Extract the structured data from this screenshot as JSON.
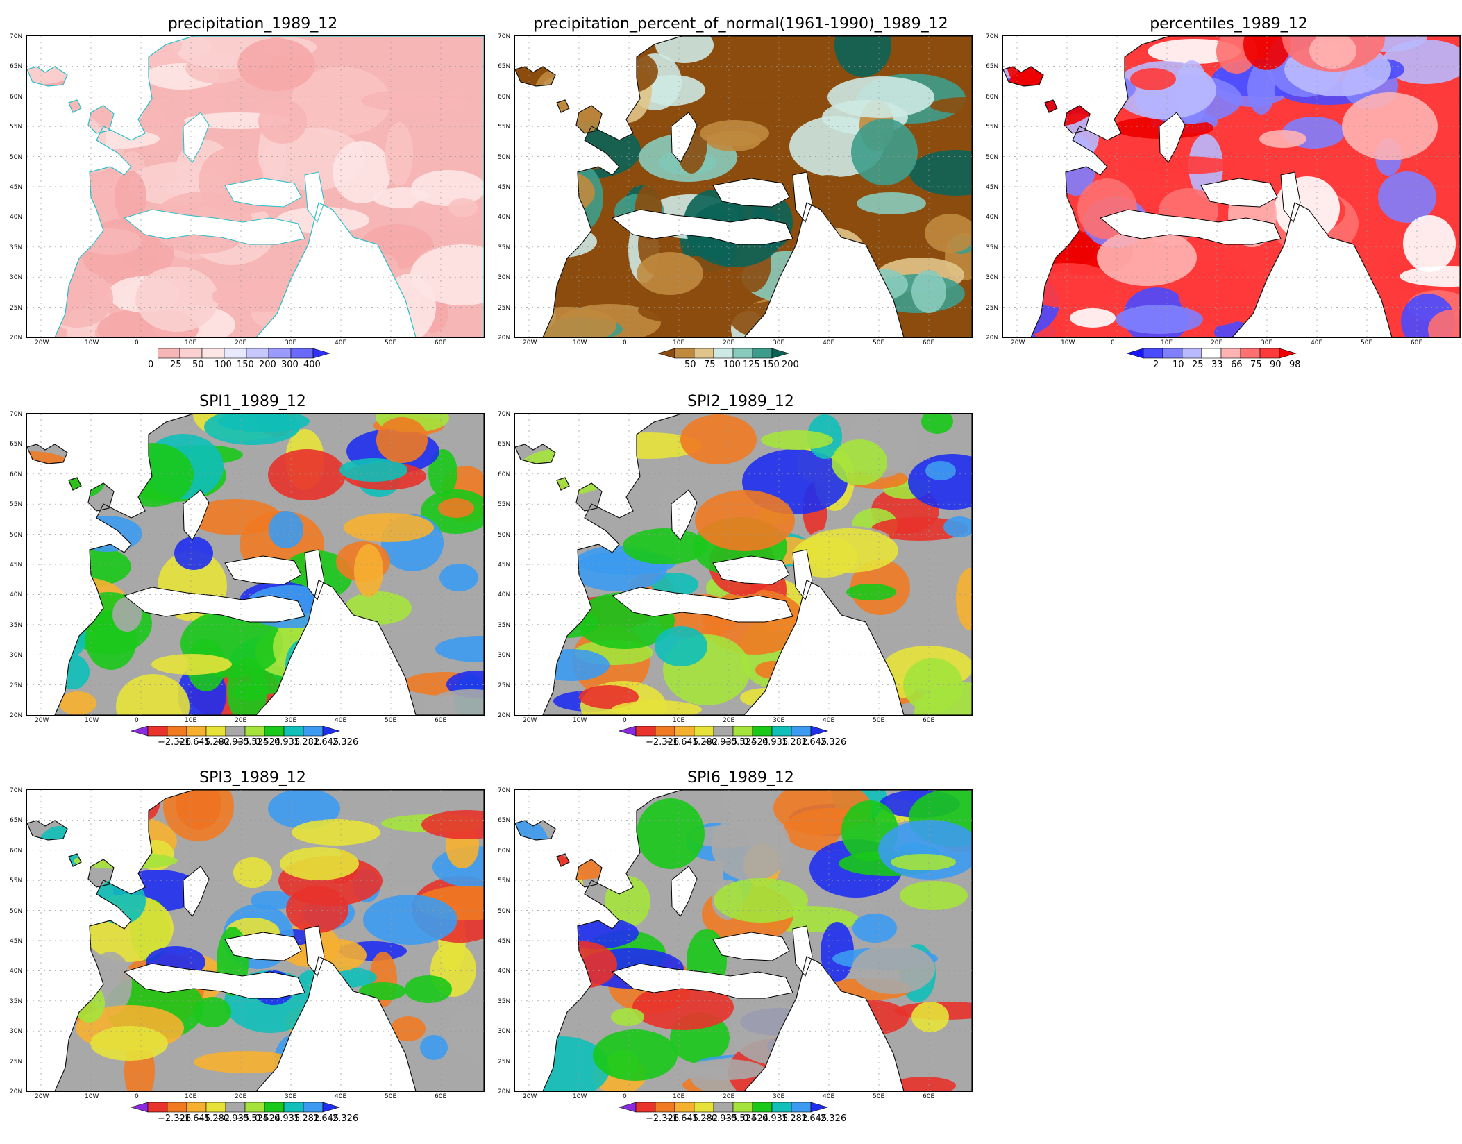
{
  "panels": [
    {
      "id": "precip",
      "title": "precipitation_1989_12",
      "palette": "precip",
      "colorbar": {
        "labels": [
          "0",
          "25",
          "50",
          "100",
          "150",
          "200",
          "300",
          "400"
        ],
        "colors": [
          "#f7b6b6",
          "#fbd0d0",
          "#fde6e6",
          "#e8e8ff",
          "#c8c8ff",
          "#9a9aff",
          "#6a6aff",
          "#3030ff"
        ],
        "left_arrow": false
      }
    },
    {
      "id": "pnorm",
      "title": "precipitation_percent_of_normal(1961-1990)_1989_12",
      "palette": "pnorm",
      "colorbar": {
        "labels": [
          "50",
          "75",
          "100",
          "125",
          "150",
          "200"
        ],
        "colors": [
          "#8b4c0e",
          "#c08a3e",
          "#e0c48a",
          "#cde9e3",
          "#88cbbd",
          "#3d9d8c",
          "#0b6357"
        ],
        "left_arrow": true
      }
    },
    {
      "id": "pct",
      "title": "percentiles_1989_12",
      "palette": "pct",
      "colorbar": {
        "labels": [
          "2",
          "10",
          "25",
          "33",
          "66",
          "75",
          "90",
          "98"
        ],
        "colors": [
          "#1515ff",
          "#4a4aff",
          "#8080ff",
          "#b9b9ff",
          "#ffffff",
          "#ffb3b3",
          "#ff7070",
          "#ff3a3a",
          "#ee0000"
        ],
        "left_arrow": true
      }
    },
    {
      "id": "spi1",
      "title": "SPI1_1989_12",
      "palette": "spi",
      "colorbar": {
        "labels": [
          "−2.326",
          "−1.645",
          "−1.282",
          "−0.935",
          "−0.524",
          "0.524",
          "0.935",
          "1.282",
          "1.645",
          "2.326"
        ],
        "colors": [
          "#8a2be2",
          "#e8322b",
          "#f07a22",
          "#f6b030",
          "#e6e23a",
          "#a8a8a8",
          "#a5e33c",
          "#19c819",
          "#10bfb8",
          "#3c9bf0",
          "#1f2ff0"
        ],
        "left_arrow": true
      }
    },
    {
      "id": "spi2",
      "title": "SPI2_1989_12",
      "palette": "spi",
      "colorbar": {
        "labels": [
          "−2.326",
          "−1.645",
          "−1.282",
          "−0.935",
          "−0.524",
          "0.524",
          "0.935",
          "1.282",
          "1.645",
          "2.326"
        ],
        "colors": [
          "#8a2be2",
          "#e8322b",
          "#f07a22",
          "#f6b030",
          "#e6e23a",
          "#a8a8a8",
          "#a5e33c",
          "#19c819",
          "#10bfb8",
          "#3c9bf0",
          "#1f2ff0"
        ],
        "left_arrow": true
      }
    },
    {
      "id": "spi3",
      "title": "SPI3_1989_12",
      "palette": "spi",
      "colorbar": {
        "labels": [
          "−2.326",
          "−1.645",
          "−1.282",
          "−0.935",
          "−0.524",
          "0.524",
          "0.935",
          "1.282",
          "1.645",
          "2.326"
        ],
        "colors": [
          "#8a2be2",
          "#e8322b",
          "#f07a22",
          "#f6b030",
          "#e6e23a",
          "#a8a8a8",
          "#a5e33c",
          "#19c819",
          "#10bfb8",
          "#3c9bf0",
          "#1f2ff0"
        ],
        "left_arrow": true
      }
    },
    {
      "id": "spi6",
      "title": "SPI6_1989_12",
      "palette": "spi",
      "colorbar": {
        "labels": [
          "−2.326",
          "−1.645",
          "−1.282",
          "−0.935",
          "−0.524",
          "0.524",
          "0.935",
          "1.282",
          "1.645",
          "2.326"
        ],
        "colors": [
          "#8a2be2",
          "#e8322b",
          "#f07a22",
          "#f6b030",
          "#e6e23a",
          "#a8a8a8",
          "#a5e33c",
          "#19c819",
          "#10bfb8",
          "#3c9bf0",
          "#1f2ff0"
        ],
        "left_arrow": true
      }
    }
  ],
  "lat_ticks": [
    "70N",
    "65N",
    "60N",
    "55N",
    "50N",
    "45N",
    "40N",
    "35N",
    "30N",
    "25N",
    "20N"
  ],
  "lon_ticks": [
    "20W",
    "10W",
    "0",
    "10E",
    "20E",
    "30E",
    "40E",
    "50E",
    "60E"
  ]
}
